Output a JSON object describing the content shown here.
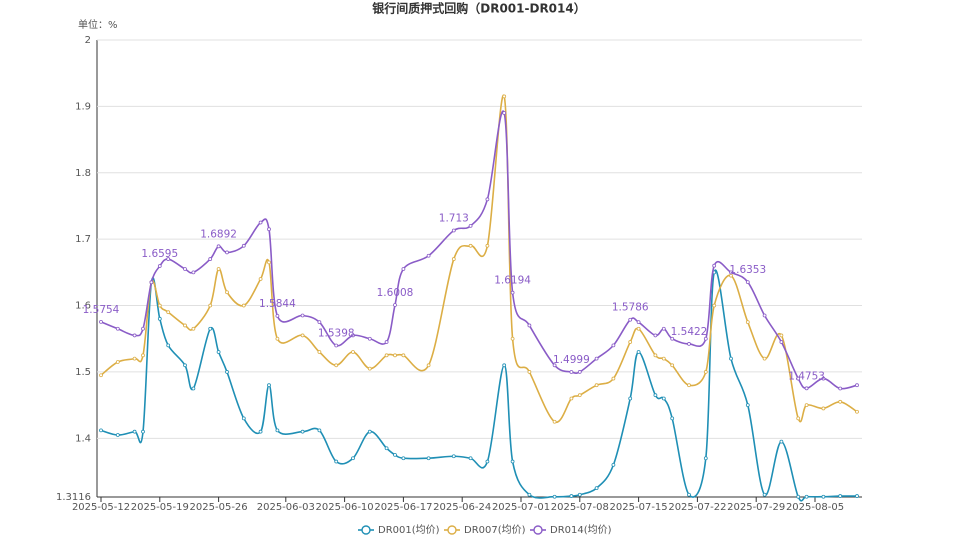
{
  "chart_data": {
    "type": "line",
    "title": "银行间质押式回购（DR001-DR014）",
    "unit_label": "单位：%",
    "x": [
      "2025-05-12",
      "2025-05-14",
      "2025-05-16",
      "2025-05-17",
      "2025-05-18",
      "2025-05-19",
      "2025-05-20",
      "2025-05-22",
      "2025-05-23",
      "2025-05-25",
      "2025-05-26",
      "2025-05-27",
      "2025-05-29",
      "2025-05-31",
      "2025-06-01",
      "2025-06-02",
      "2025-06-05",
      "2025-06-07",
      "2025-06-09",
      "2025-06-11",
      "2025-06-13",
      "2025-06-15",
      "2025-06-16",
      "2025-06-17",
      "2025-06-20",
      "2025-06-23",
      "2025-06-25",
      "2025-06-27",
      "2025-06-29",
      "2025-06-30",
      "2025-07-02",
      "2025-07-05",
      "2025-07-07",
      "2025-07-08",
      "2025-07-10",
      "2025-07-12",
      "2025-07-14",
      "2025-07-15",
      "2025-07-17",
      "2025-07-18",
      "2025-07-19",
      "2025-07-21",
      "2025-07-23",
      "2025-07-24",
      "2025-07-26",
      "2025-07-28",
      "2025-07-30",
      "2025-08-01",
      "2025-08-03",
      "2025-08-04",
      "2025-08-06",
      "2025-08-08",
      "2025-08-10"
    ],
    "series": [
      {
        "name": "DR001(均价)",
        "color": "#1f8fb5",
        "values": [
          1.412,
          1.405,
          1.41,
          1.41,
          1.635,
          1.58,
          1.54,
          1.51,
          1.475,
          1.565,
          1.53,
          1.5,
          1.43,
          1.41,
          1.48,
          1.412,
          1.41,
          1.412,
          1.365,
          1.37,
          1.41,
          1.385,
          1.375,
          1.37,
          1.37,
          1.373,
          1.37,
          1.365,
          1.51,
          1.365,
          1.315,
          1.312,
          1.313,
          1.315,
          1.325,
          1.36,
          1.46,
          1.53,
          1.465,
          1.46,
          1.43,
          1.315,
          1.37,
          1.65,
          1.52,
          1.45,
          1.315,
          1.395,
          1.312,
          1.312,
          1.312,
          1.313,
          1.313
        ]
      },
      {
        "name": "DR007(均价)",
        "color": "#dcae45",
        "values": [
          1.495,
          1.515,
          1.52,
          1.525,
          1.635,
          1.6,
          1.59,
          1.57,
          1.565,
          1.6,
          1.655,
          1.62,
          1.6,
          1.64,
          1.665,
          1.55,
          1.555,
          1.53,
          1.51,
          1.53,
          1.505,
          1.525,
          1.525,
          1.525,
          1.51,
          1.67,
          1.69,
          1.69,
          1.915,
          1.55,
          1.5,
          1.425,
          1.46,
          1.465,
          1.48,
          1.49,
          1.545,
          1.565,
          1.525,
          1.52,
          1.51,
          1.48,
          1.5,
          1.6,
          1.645,
          1.575,
          1.52,
          1.555,
          1.43,
          1.45,
          1.445,
          1.455,
          1.44
        ]
      },
      {
        "name": "DR014(均价)",
        "color": "#8a5cc7",
        "label_x": [
          "2025-05-12",
          "2025-05-19",
          "2025-05-26",
          "2025-06-02",
          "2025-06-09",
          "2025-06-16",
          "2025-06-23",
          "2025-06-30",
          "2025-07-07",
          "2025-07-14",
          "2025-07-21",
          "2025-07-28",
          "2025-08-04"
        ],
        "values": [
          1.5754,
          1.565,
          1.555,
          1.565,
          1.635,
          1.6595,
          1.67,
          1.655,
          1.65,
          1.67,
          1.6892,
          1.68,
          1.69,
          1.725,
          1.715,
          1.5844,
          1.585,
          1.575,
          1.5398,
          1.555,
          1.55,
          1.545,
          1.6008,
          1.655,
          1.675,
          1.713,
          1.72,
          1.76,
          1.89,
          1.6194,
          1.57,
          1.51,
          1.4999,
          1.5,
          1.52,
          1.54,
          1.5786,
          1.575,
          1.555,
          1.565,
          1.55,
          1.5422,
          1.55,
          1.66,
          1.65,
          1.6353,
          1.585,
          1.545,
          1.49,
          1.4753,
          1.49,
          1.475,
          1.48
        ]
      }
    ],
    "xlim": [
      "2025-05-12",
      "2025-08-10"
    ],
    "xticks": [
      "2025-05-12",
      "2025-05-19",
      "2025-05-26",
      "2025-06-03",
      "2025-06-10",
      "2025-06-17",
      "2025-06-24",
      "2025-07-01",
      "2025-07-08",
      "2025-07-15",
      "2025-07-22",
      "2025-07-29",
      "2025-08-05"
    ],
    "ylim": [
      1.3116,
      2
    ],
    "yticks": [
      1.3116,
      1.4,
      1.5,
      1.6,
      1.7,
      1.8,
      1.9,
      2
    ],
    "grid": true,
    "legend": "bottom"
  }
}
